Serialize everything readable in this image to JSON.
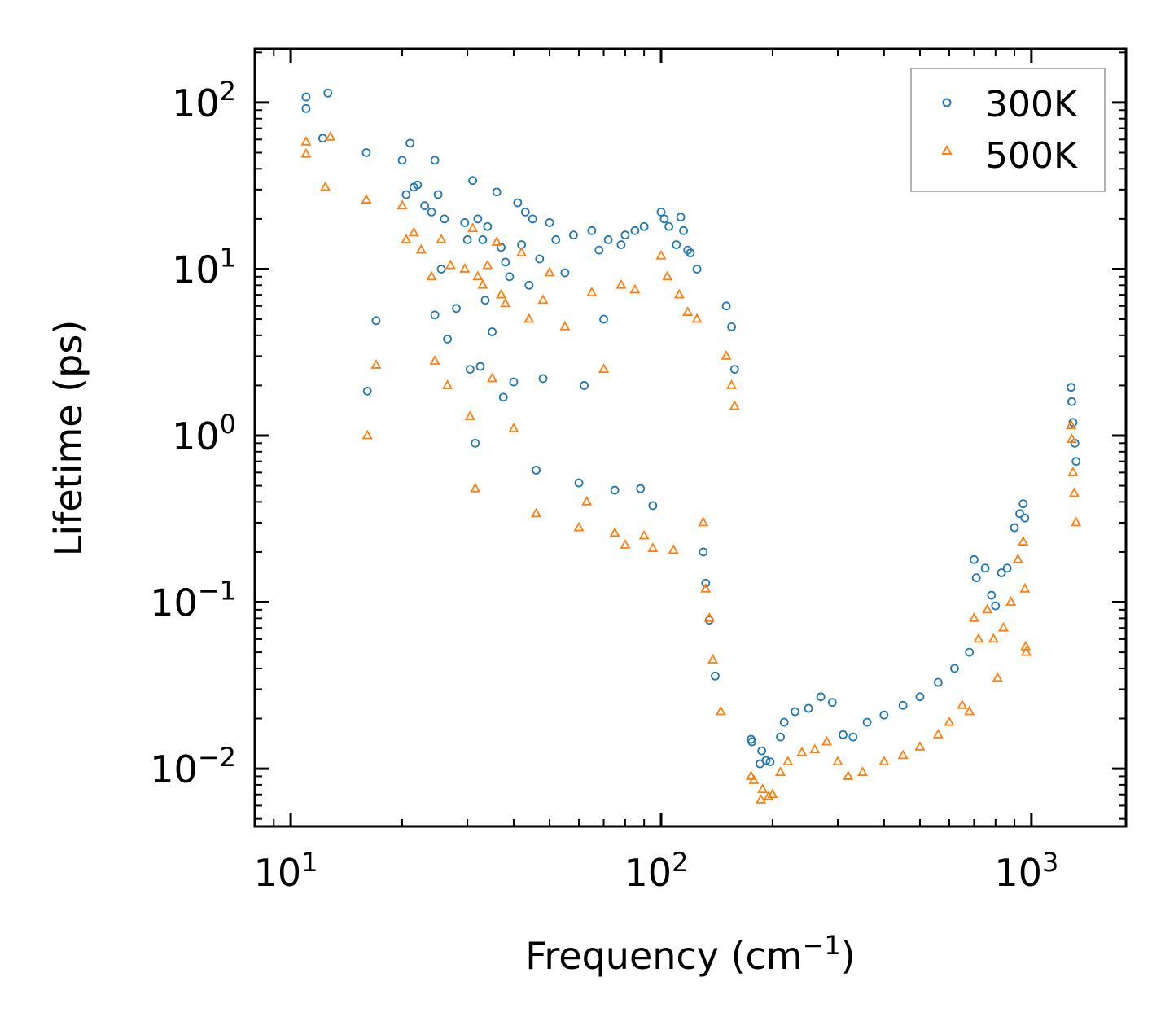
{
  "chart_data": {
    "type": "scatter",
    "title": "",
    "xlabel": "Frequency (cm",
    "xlabel_sup": "−1",
    "xlabel_end": ")",
    "ylabel": "Lifetime (ps)",
    "xscale": "log",
    "yscale": "log",
    "xlim": [
      8,
      1800
    ],
    "ylim": [
      0.0045,
      210
    ],
    "x_ticks": [
      {
        "value": 10,
        "base": "10",
        "exp": "1"
      },
      {
        "value": 100,
        "base": "10",
        "exp": "2"
      },
      {
        "value": 1000,
        "base": "10",
        "exp": "3"
      }
    ],
    "y_ticks": [
      {
        "value": 0.01,
        "base": "10",
        "exp": "−2"
      },
      {
        "value": 0.1,
        "base": "10",
        "exp": "−1"
      },
      {
        "value": 1,
        "base": "10",
        "exp": "0"
      },
      {
        "value": 10,
        "base": "10",
        "exp": "1"
      },
      {
        "value": 100,
        "base": "10",
        "exp": "2"
      }
    ],
    "legend_position": "top-right",
    "series": [
      {
        "name": "300K",
        "marker": "circle-open",
        "color": "#1f77b4",
        "points": [
          [
            11.0,
            108
          ],
          [
            11.0,
            92
          ],
          [
            12.2,
            61
          ],
          [
            12.6,
            114
          ],
          [
            16.0,
            50
          ],
          [
            16.1,
            1.85
          ],
          [
            17.0,
            4.9
          ],
          [
            20.0,
            45
          ],
          [
            20.5,
            28
          ],
          [
            21.0,
            57
          ],
          [
            21.5,
            31
          ],
          [
            22.0,
            32
          ],
          [
            23.0,
            24
          ],
          [
            24.0,
            22
          ],
          [
            24.5,
            45
          ],
          [
            25.0,
            28
          ],
          [
            24.5,
            5.3
          ],
          [
            26.0,
            20
          ],
          [
            26.5,
            3.8
          ],
          [
            25.5,
            10
          ],
          [
            28.0,
            5.8
          ],
          [
            29.5,
            19
          ],
          [
            30.0,
            15
          ],
          [
            30.5,
            2.5
          ],
          [
            31.0,
            34
          ],
          [
            31.5,
            0.9
          ],
          [
            32.0,
            20
          ],
          [
            32.5,
            2.6
          ],
          [
            33.0,
            15
          ],
          [
            33.5,
            6.5
          ],
          [
            34.0,
            18
          ],
          [
            35.0,
            4.2
          ],
          [
            36.0,
            29
          ],
          [
            37.0,
            13.5
          ],
          [
            37.5,
            1.7
          ],
          [
            38.0,
            11.0
          ],
          [
            39.0,
            9.0
          ],
          [
            40.0,
            2.1
          ],
          [
            41.0,
            25
          ],
          [
            42.0,
            14
          ],
          [
            43.0,
            22
          ],
          [
            44.0,
            8.0
          ],
          [
            45.0,
            20
          ],
          [
            46.0,
            0.62
          ],
          [
            47.0,
            11.5
          ],
          [
            48.0,
            2.2
          ],
          [
            50.0,
            19
          ],
          [
            52.0,
            15
          ],
          [
            55.0,
            9.5
          ],
          [
            58.0,
            16
          ],
          [
            60.0,
            0.52
          ],
          [
            62.0,
            2.0
          ],
          [
            65.0,
            17
          ],
          [
            68.0,
            13
          ],
          [
            70.0,
            5.0
          ],
          [
            72.0,
            15
          ],
          [
            75.0,
            0.47
          ],
          [
            78.0,
            14
          ],
          [
            80.0,
            16
          ],
          [
            85.0,
            17
          ],
          [
            88.0,
            0.48
          ],
          [
            90.0,
            18
          ],
          [
            95.0,
            0.38
          ],
          [
            100.0,
            22
          ],
          [
            102.0,
            20
          ],
          [
            105.0,
            18
          ],
          [
            110.0,
            14
          ],
          [
            113.0,
            20.5
          ],
          [
            115.0,
            17
          ],
          [
            118.0,
            13
          ],
          [
            120.0,
            12.5
          ],
          [
            125.0,
            10
          ],
          [
            130.0,
            0.2
          ],
          [
            132.0,
            0.13
          ],
          [
            135.0,
            0.078
          ],
          [
            140.0,
            0.036
          ],
          [
            150.0,
            6.0
          ],
          [
            155.0,
            4.5
          ],
          [
            158.0,
            2.5
          ],
          [
            175.0,
            0.015
          ],
          [
            176.0,
            0.0145
          ],
          [
            185.0,
            0.0107
          ],
          [
            187.0,
            0.0128
          ],
          [
            192.0,
            0.0112
          ],
          [
            197.0,
            0.011
          ],
          [
            210.0,
            0.0155
          ],
          [
            215.0,
            0.019
          ],
          [
            230.0,
            0.022
          ],
          [
            250.0,
            0.023
          ],
          [
            270.0,
            0.027
          ],
          [
            290.0,
            0.025
          ],
          [
            310.0,
            0.016
          ],
          [
            330.0,
            0.0155
          ],
          [
            360.0,
            0.019
          ],
          [
            400.0,
            0.021
          ],
          [
            450.0,
            0.024
          ],
          [
            500.0,
            0.027
          ],
          [
            560.0,
            0.033
          ],
          [
            620.0,
            0.04
          ],
          [
            680.0,
            0.05
          ],
          [
            700.0,
            0.18
          ],
          [
            710.0,
            0.14
          ],
          [
            750.0,
            0.16
          ],
          [
            780.0,
            0.11
          ],
          [
            800.0,
            0.095
          ],
          [
            830.0,
            0.15
          ],
          [
            860.0,
            0.16
          ],
          [
            900.0,
            0.28
          ],
          [
            930.0,
            0.34
          ],
          [
            950.0,
            0.39
          ],
          [
            960.0,
            0.32
          ],
          [
            1280.0,
            1.95
          ],
          [
            1285.0,
            1.6
          ],
          [
            1295.0,
            1.2
          ],
          [
            1310.0,
            0.9
          ],
          [
            1320.0,
            0.7
          ]
        ]
      },
      {
        "name": "500K",
        "marker": "triangle-open",
        "color": "#ff7f0e",
        "points": [
          [
            11.0,
            58
          ],
          [
            11.0,
            49
          ],
          [
            12.4,
            31
          ],
          [
            12.8,
            62
          ],
          [
            16.0,
            26
          ],
          [
            16.1,
            1.0
          ],
          [
            17.0,
            2.65
          ],
          [
            20.0,
            24
          ],
          [
            20.5,
            15
          ],
          [
            21.5,
            16.5
          ],
          [
            22.5,
            13
          ],
          [
            24.0,
            9.0
          ],
          [
            24.5,
            2.8
          ],
          [
            25.5,
            15
          ],
          [
            26.5,
            2.0
          ],
          [
            27.0,
            10.5
          ],
          [
            29.5,
            10
          ],
          [
            30.5,
            1.3
          ],
          [
            31.0,
            17.5
          ],
          [
            31.5,
            0.48
          ],
          [
            32.0,
            9
          ],
          [
            33.0,
            8.0
          ],
          [
            34.0,
            10.5
          ],
          [
            35.0,
            2.2
          ],
          [
            36.0,
            14.5
          ],
          [
            37.0,
            7.0
          ],
          [
            38.0,
            6.2
          ],
          [
            40.0,
            1.1
          ],
          [
            42.0,
            12.5
          ],
          [
            44.0,
            5.0
          ],
          [
            46.0,
            0.34
          ],
          [
            48.0,
            6.5
          ],
          [
            50.0,
            9.5
          ],
          [
            55.0,
            4.5
          ],
          [
            60.0,
            0.28
          ],
          [
            63.0,
            0.4
          ],
          [
            65.0,
            7.2
          ],
          [
            70.0,
            2.5
          ],
          [
            75.0,
            0.26
          ],
          [
            78.0,
            8.0
          ],
          [
            80.0,
            0.22
          ],
          [
            85.0,
            7.5
          ],
          [
            90.0,
            0.25
          ],
          [
            95.0,
            0.21
          ],
          [
            100.0,
            12
          ],
          [
            104.0,
            9.0
          ],
          [
            108.0,
            0.205
          ],
          [
            112.0,
            7.0
          ],
          [
            118.0,
            5.5
          ],
          [
            125.0,
            5.0
          ],
          [
            130.0,
            0.3
          ],
          [
            132.0,
            0.12
          ],
          [
            135.0,
            0.08
          ],
          [
            138.0,
            0.045
          ],
          [
            145.0,
            0.022
          ],
          [
            150.0,
            3.0
          ],
          [
            155.0,
            2.0
          ],
          [
            158.0,
            1.5
          ],
          [
            175.0,
            0.009
          ],
          [
            178.0,
            0.0085
          ],
          [
            186.0,
            0.0065
          ],
          [
            188.0,
            0.0075
          ],
          [
            195.0,
            0.0068
          ],
          [
            200.0,
            0.007
          ],
          [
            210.0,
            0.0095
          ],
          [
            220.0,
            0.011
          ],
          [
            240.0,
            0.0125
          ],
          [
            260.0,
            0.013
          ],
          [
            280.0,
            0.0145
          ],
          [
            300.0,
            0.011
          ],
          [
            320.0,
            0.009
          ],
          [
            350.0,
            0.0095
          ],
          [
            400.0,
            0.011
          ],
          [
            450.0,
            0.012
          ],
          [
            500.0,
            0.0135
          ],
          [
            560.0,
            0.016
          ],
          [
            600.0,
            0.019
          ],
          [
            650.0,
            0.024
          ],
          [
            680.0,
            0.022
          ],
          [
            700.0,
            0.08
          ],
          [
            720.0,
            0.06
          ],
          [
            760.0,
            0.09
          ],
          [
            790.0,
            0.06
          ],
          [
            810.0,
            0.035
          ],
          [
            840.0,
            0.07
          ],
          [
            880.0,
            0.1
          ],
          [
            920.0,
            0.18
          ],
          [
            950.0,
            0.23
          ],
          [
            960.0,
            0.12
          ],
          [
            965.0,
            0.054
          ],
          [
            968.0,
            0.05
          ],
          [
            1280.0,
            1.15
          ],
          [
            1285.0,
            0.95
          ],
          [
            1295.0,
            0.6
          ],
          [
            1305.0,
            0.45
          ],
          [
            1320.0,
            0.3
          ]
        ]
      }
    ]
  }
}
